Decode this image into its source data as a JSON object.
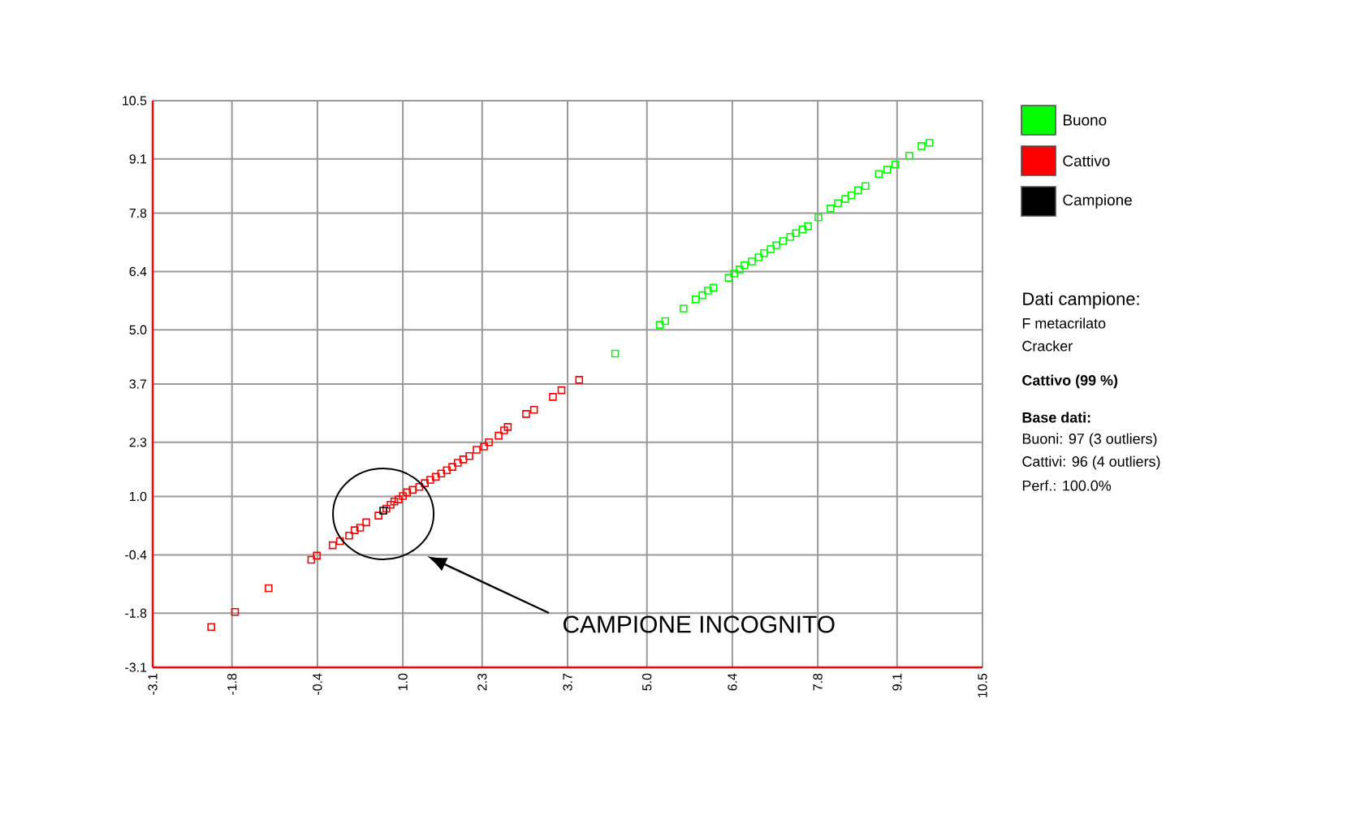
{
  "chart_data": {
    "type": "scatter",
    "marker": "square",
    "grid": true,
    "legend": "top right",
    "xlim": [
      -3.1,
      10.5
    ],
    "ylim": [
      -3.1,
      10.5
    ],
    "xticks": [
      -3.1,
      -1.8,
      -0.4,
      {
        "value": 1.0,
        "label": "1.0"
      },
      2.3,
      3.7,
      {
        "value": 5.0,
        "label": "5.0"
      },
      6.4,
      7.8,
      9.1,
      10.5
    ],
    "yticks": [
      -3.1,
      -1.8,
      -0.4,
      {
        "value": 1.0,
        "label": "1.0"
      },
      2.3,
      3.7,
      {
        "value": 5.0,
        "label": "5.0"
      },
      6.4,
      7.8,
      9.1,
      10.5
    ],
    "series": [
      {
        "name": "Buono",
        "color": "#00ff00",
        "x": [
          4.48,
          5.21,
          5.3,
          5.6,
          5.8,
          5.91,
          6.0,
          6.09,
          6.34,
          6.43,
          6.52,
          6.6,
          6.72,
          6.83,
          6.92,
          7.03,
          7.12,
          7.23,
          7.35,
          7.44,
          7.55,
          7.64,
          7.81,
          8.01,
          8.13,
          8.25,
          8.35,
          8.46,
          8.58,
          8.8,
          8.94,
          9.07,
          9.3,
          9.5,
          9.63
        ],
        "values": [
          4.43,
          5.12,
          5.21,
          5.51,
          5.73,
          5.83,
          5.94,
          6.01,
          6.25,
          6.35,
          6.45,
          6.55,
          6.64,
          6.74,
          6.84,
          6.94,
          7.03,
          7.13,
          7.23,
          7.32,
          7.41,
          7.49,
          7.7,
          7.91,
          8.04,
          8.14,
          8.23,
          8.35,
          8.45,
          8.74,
          8.84,
          8.97,
          9.18,
          9.41,
          9.49
        ]
      },
      {
        "name": "Cattivo",
        "color": "#ff0000",
        "x": [
          -2.14,
          -1.75,
          -1.2,
          -0.5,
          -0.41,
          -0.15,
          -0.03,
          0.12,
          0.21,
          0.3,
          0.4,
          0.6,
          0.73,
          0.8,
          0.86,
          0.93,
          1.0,
          1.07,
          1.16,
          1.27,
          1.36,
          1.45,
          1.54,
          1.63,
          1.72,
          1.81,
          1.9,
          1.99,
          2.09,
          2.21,
          2.33,
          2.41,
          2.57,
          2.66,
          2.72,
          3.02,
          3.15,
          3.46,
          3.6,
          3.89
        ],
        "values": [
          -2.13,
          -1.77,
          -1.2,
          -0.52,
          -0.42,
          -0.17,
          -0.07,
          0.06,
          0.19,
          0.25,
          0.38,
          0.54,
          0.71,
          0.8,
          0.88,
          0.93,
          1.01,
          1.1,
          1.16,
          1.23,
          1.32,
          1.4,
          1.47,
          1.55,
          1.63,
          1.71,
          1.81,
          1.89,
          1.97,
          2.12,
          2.2,
          2.3,
          2.46,
          2.59,
          2.67,
          2.98,
          3.08,
          3.39,
          3.55,
          3.8
        ]
      },
      {
        "name": "Campione",
        "color": "#000000",
        "x": [
          0.68
        ],
        "values": [
          0.66
        ]
      }
    ],
    "annotations": [
      "CAMPIONE INCOGNITO",
      "Dati campione:",
      "F metacrilato",
      "Cracker",
      "**Cattivo (99 %)**",
      "**Base dati:**",
      "Buoni: 97 (3 outliers)",
      "Cattivi: 96 (4 outliers)",
      "Perf.: 100.0%"
    ]
  }
}
